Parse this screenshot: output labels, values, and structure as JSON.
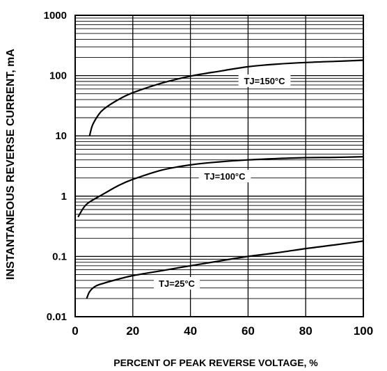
{
  "chart_data": {
    "type": "line",
    "title": "",
    "xlabel": "PERCENT OF PEAK REVERSE VOLTAGE, %",
    "ylabel": "INSTANTANEOUS REVERSE CURRENT, mA",
    "xlim": [
      0,
      100
    ],
    "ylim": [
      0.01,
      1000
    ],
    "y_scale": "log",
    "grid": true,
    "x_ticks": [
      "0",
      "20",
      "40",
      "60",
      "80",
      "100"
    ],
    "y_ticks": [
      "0.01",
      "0.1",
      "1",
      "10",
      "100",
      "1000"
    ],
    "series": [
      {
        "name": "TJ=150°C",
        "x": [
          5,
          6,
          8,
          10,
          15,
          20,
          30,
          40,
          50,
          60,
          70,
          80,
          90,
          100
        ],
        "y": [
          10,
          15,
          22,
          28,
          40,
          52,
          75,
          98,
          118,
          140,
          155,
          165,
          172,
          180
        ]
      },
      {
        "name": "TJ=100°C",
        "x": [
          1,
          3,
          5,
          10,
          15,
          20,
          30,
          40,
          50,
          60,
          70,
          80,
          90,
          100
        ],
        "y": [
          0.45,
          0.65,
          0.8,
          1.1,
          1.5,
          1.9,
          2.7,
          3.3,
          3.7,
          4.0,
          4.2,
          4.35,
          4.4,
          4.5
        ]
      },
      {
        "name": "TJ=25°C",
        "x": [
          4,
          5,
          7,
          10,
          15,
          20,
          30,
          40,
          50,
          60,
          70,
          80,
          90,
          100
        ],
        "y": [
          0.02,
          0.026,
          0.032,
          0.036,
          0.042,
          0.048,
          0.058,
          0.07,
          0.084,
          0.1,
          0.115,
          0.135,
          0.155,
          0.18
        ]
      }
    ]
  }
}
